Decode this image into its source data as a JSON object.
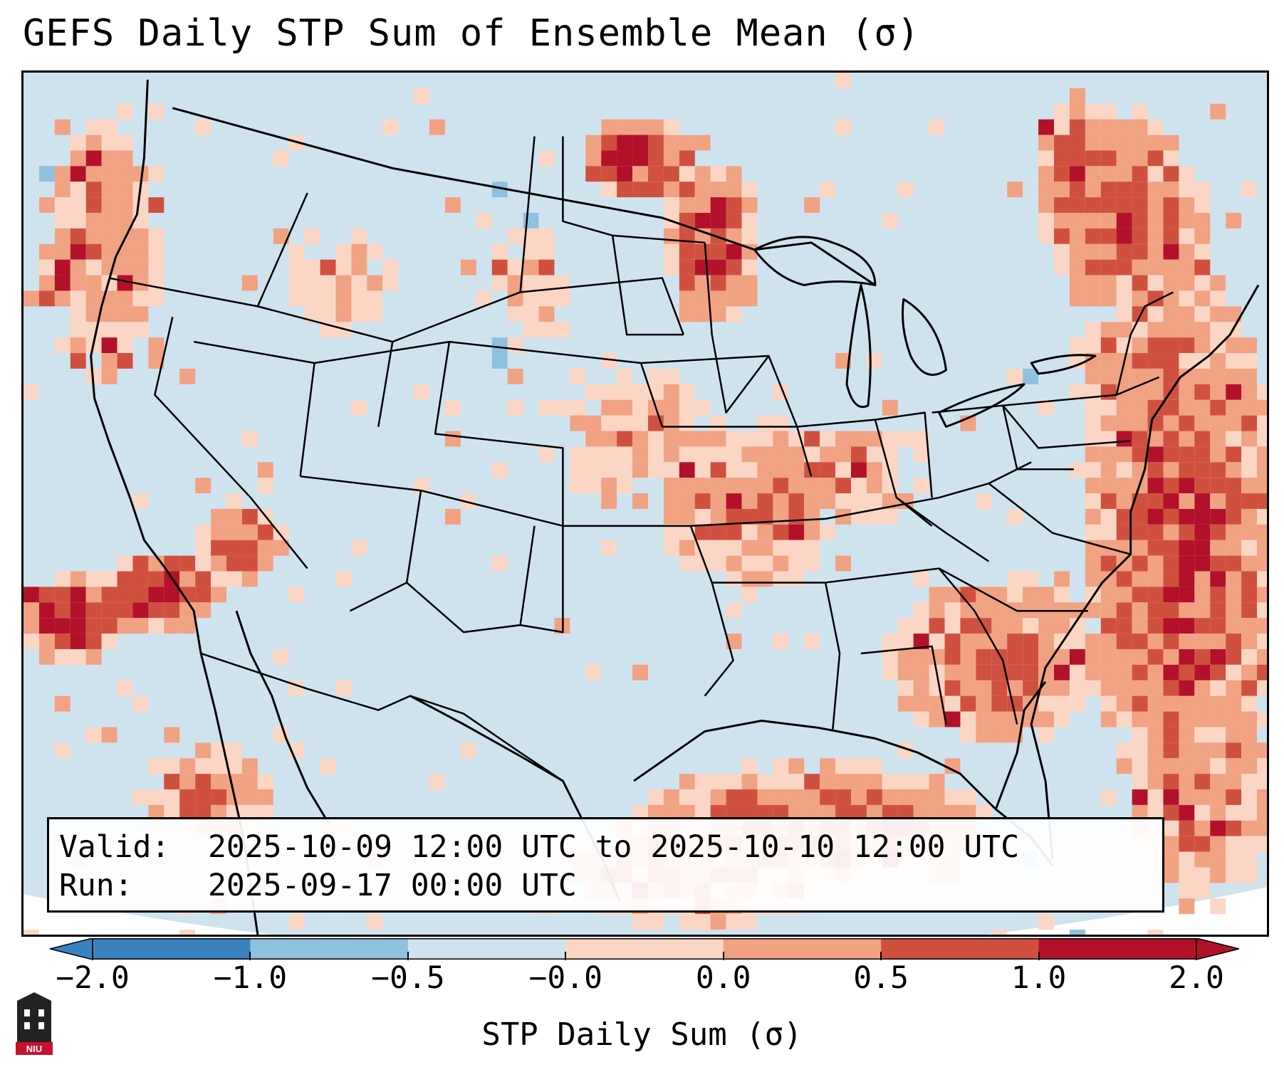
{
  "title": "GEFS Daily STP Sum of Ensemble Mean (σ)",
  "info": {
    "valid_key": "Valid:",
    "valid_value": "2025-10-09 12:00 UTC to 2025-10-10 12:00 UTC",
    "run_key": "Run:",
    "run_value": "2025-09-17 00:00 UTC"
  },
  "colorbar": {
    "label": "STP Daily Sum (σ)",
    "ticks": [
      "−2.0",
      "−1.0",
      "−0.5",
      "−0.0",
      "0.0",
      "0.5",
      "1.0",
      "2.0"
    ],
    "colors": [
      "#3a83c0",
      "#8fc1de",
      "#cfe3ef",
      "#f6f6f6",
      "#fbd6c4",
      "#f1a283",
      "#d0503f",
      "#b3112a"
    ]
  },
  "map": {
    "background_color": "#cfe3ef",
    "anomaly_colors": {
      "light": "#fbd6c4",
      "medium": "#f1a283",
      "strong": "#d0503f",
      "extreme": "#b3112a",
      "negative": "#8fc1de"
    }
  },
  "logo": {
    "text": "NIU",
    "icon": "niu-tower-logo-icon"
  }
}
